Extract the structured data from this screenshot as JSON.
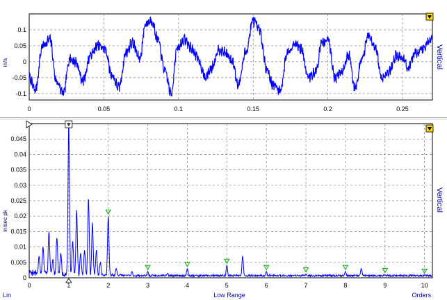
{
  "chart_data": [
    {
      "type": "line",
      "title": "",
      "xlabel": "",
      "ylabel": "in/s",
      "side_label": "Vertical",
      "xlim": [
        0,
        0.27
      ],
      "ylim": [
        -0.12,
        0.15
      ],
      "x_ticks": [
        0,
        0.05,
        0.1,
        0.15,
        0.2,
        0.25
      ],
      "x_tick_labels": [
        "0",
        "0.05",
        "0.1",
        "0.15",
        "0.2",
        "0.25"
      ],
      "y_ticks": [
        0.1,
        0.05,
        0,
        -0.05,
        -0.1
      ],
      "y_tick_labels": [
        "0.1",
        "0.05",
        "0",
        "-0.05",
        "-0.1"
      ],
      "grid": true,
      "line_color": "#0000ff",
      "series": [
        {
          "x": [
            0,
            0.004,
            0.009,
            0.014,
            0.018,
            0.023,
            0.027,
            0.031,
            0.036,
            0.041,
            0.046,
            0.051,
            0.055,
            0.06,
            0.065,
            0.069,
            0.074,
            0.078,
            0.082,
            0.086,
            0.091,
            0.095,
            0.099,
            0.104,
            0.109,
            0.113,
            0.118,
            0.122,
            0.127,
            0.131,
            0.136,
            0.14,
            0.145,
            0.15,
            0.154,
            0.159,
            0.163,
            0.168,
            0.173,
            0.178,
            0.182,
            0.187,
            0.192,
            0.196,
            0.2,
            0.205,
            0.209,
            0.214,
            0.218,
            0.223,
            0.227,
            0.232,
            0.236,
            0.241,
            0.246,
            0.25,
            0.254,
            0.259,
            0.264,
            0.268
          ],
          "y": [
            -0.05,
            -0.09,
            0.05,
            0.07,
            -0.06,
            -0.1,
            0.01,
            0.0,
            -0.06,
            0.02,
            0.05,
            0.04,
            -0.04,
            -0.08,
            0.03,
            0.06,
            0.01,
            0.12,
            0.13,
            0.07,
            -0.03,
            -0.1,
            0.04,
            0.07,
            0.04,
            0.01,
            -0.05,
            -0.02,
            0.04,
            0.03,
            0.0,
            -0.07,
            0.03,
            0.13,
            0.1,
            -0.02,
            -0.07,
            -0.09,
            0.03,
            0.06,
            0.04,
            -0.05,
            -0.03,
            0.06,
            0.07,
            -0.05,
            -0.03,
            0.02,
            -0.08,
            0.01,
            0.08,
            0.04,
            -0.05,
            -0.03,
            0.02,
            0.01,
            -0.02,
            0.03,
            0.04,
            0.07
          ]
        }
      ]
    },
    {
      "type": "line",
      "title": "",
      "xlabel": "Low Range",
      "ylabel": "in/sec pk",
      "side_label": "Vertical",
      "corner_left_label": "Lin",
      "corner_right_label": "Orders",
      "xlim": [
        0,
        10.2
      ],
      "ylim": [
        0,
        0.05
      ],
      "x_ticks": [
        0,
        1,
        2,
        3,
        4,
        5,
        6,
        7,
        8,
        9,
        10
      ],
      "x_tick_labels": [
        "0",
        "1",
        "2",
        "3",
        "4",
        "5",
        "6",
        "7",
        "8",
        "9",
        "10"
      ],
      "y_ticks": [
        0.045,
        0.04,
        0.035,
        0.03,
        0.025,
        0.02,
        0.015,
        0.01,
        0.005,
        0
      ],
      "y_tick_labels": [
        "0.045",
        "0.04",
        "0.035",
        "0.03",
        "0.025",
        "0.02",
        "0.015",
        "0.01",
        "0.005",
        "0"
      ],
      "grid": true,
      "line_color": "#0000ff",
      "harmonic_markers": [
        1,
        2,
        3,
        4,
        5,
        6,
        7,
        8,
        9,
        10
      ],
      "peaks": [
        {
          "x": 0.25,
          "y": 0.007
        },
        {
          "x": 0.35,
          "y": 0.01
        },
        {
          "x": 0.5,
          "y": 0.015
        },
        {
          "x": 0.6,
          "y": 0.006
        },
        {
          "x": 0.7,
          "y": 0.013
        },
        {
          "x": 0.8,
          "y": 0.008
        },
        {
          "x": 1.0,
          "y": 0.051
        },
        {
          "x": 1.1,
          "y": 0.012
        },
        {
          "x": 1.2,
          "y": 0.022
        },
        {
          "x": 1.3,
          "y": 0.008
        },
        {
          "x": 1.4,
          "y": 0.009
        },
        {
          "x": 1.5,
          "y": 0.026
        },
        {
          "x": 1.6,
          "y": 0.018
        },
        {
          "x": 1.7,
          "y": 0.009
        },
        {
          "x": 1.8,
          "y": 0.005
        },
        {
          "x": 2.0,
          "y": 0.02
        },
        {
          "x": 2.2,
          "y": 0.003
        },
        {
          "x": 2.6,
          "y": 0.002
        },
        {
          "x": 3.0,
          "y": 0.002
        },
        {
          "x": 3.5,
          "y": 0.0015
        },
        {
          "x": 4.0,
          "y": 0.003
        },
        {
          "x": 5.0,
          "y": 0.004
        },
        {
          "x": 5.4,
          "y": 0.007
        },
        {
          "x": 6.0,
          "y": 0.002
        },
        {
          "x": 7.0,
          "y": 0.0012
        },
        {
          "x": 8.0,
          "y": 0.002
        },
        {
          "x": 8.4,
          "y": 0.003
        },
        {
          "x": 9.0,
          "y": 0.001
        },
        {
          "x": 10.0,
          "y": 0.0008
        }
      ]
    }
  ]
}
